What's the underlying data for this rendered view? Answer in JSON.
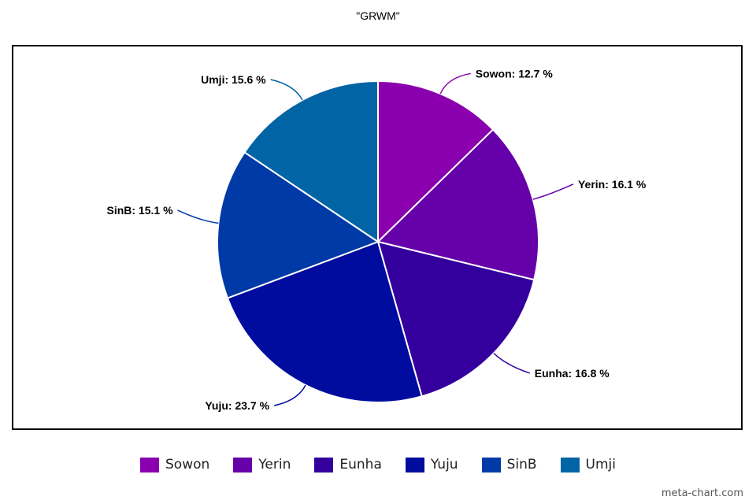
{
  "chart_data": {
    "type": "pie",
    "title": "\"GRWM\"",
    "legend_position": "bottom",
    "slices": [
      {
        "name": "Sowon",
        "value": 12.7,
        "label": "Sowon: 12.7 %",
        "color": "#8A00AE"
      },
      {
        "name": "Yerin",
        "value": 16.1,
        "label": "Yerin: 16.1 %",
        "color": "#6600A8"
      },
      {
        "name": "Eunha",
        "value": 16.8,
        "label": "Eunha: 16.8 %",
        "color": "#33009D"
      },
      {
        "name": "Yuju",
        "value": 23.7,
        "label": "Yuju: 23.7 %",
        "color": "#000C9E"
      },
      {
        "name": "SinB",
        "value": 15.1,
        "label": "SinB: 15.1 %",
        "color": "#003AA6"
      },
      {
        "name": "Umji",
        "value": 15.6,
        "label": "Umji: 15.6 %",
        "color": "#0064A5"
      }
    ]
  },
  "watermark": "meta-chart.com"
}
